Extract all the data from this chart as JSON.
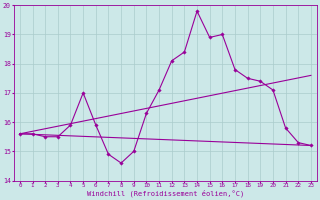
{
  "x": [
    0,
    1,
    2,
    3,
    4,
    5,
    6,
    7,
    8,
    9,
    10,
    11,
    12,
    13,
    14,
    15,
    16,
    17,
    18,
    19,
    20,
    21,
    22,
    23
  ],
  "main_line": [
    15.6,
    15.6,
    15.5,
    15.5,
    15.9,
    17.0,
    15.9,
    14.9,
    14.6,
    15.0,
    16.3,
    17.1,
    18.1,
    18.4,
    19.8,
    18.9,
    19.0,
    17.8,
    17.5,
    17.4,
    17.1,
    15.8,
    15.3,
    15.2
  ],
  "trend1_x": [
    0,
    23
  ],
  "trend1_y": [
    15.6,
    17.6
  ],
  "trend2_x": [
    0,
    23
  ],
  "trend2_y": [
    15.6,
    15.2
  ],
  "line_color": "#990099",
  "bg_color": "#cce8e8",
  "grid_color": "#aacccc",
  "ylim": [
    14,
    20
  ],
  "xlim": [
    -0.5,
    23.5
  ],
  "xlabel": "Windchill (Refroidissement éolien,°C)",
  "yticks": [
    14,
    15,
    16,
    17,
    18,
    19,
    20
  ],
  "xticks": [
    0,
    1,
    2,
    3,
    4,
    5,
    6,
    7,
    8,
    9,
    10,
    11,
    12,
    13,
    14,
    15,
    16,
    17,
    18,
    19,
    20,
    21,
    22,
    23
  ]
}
